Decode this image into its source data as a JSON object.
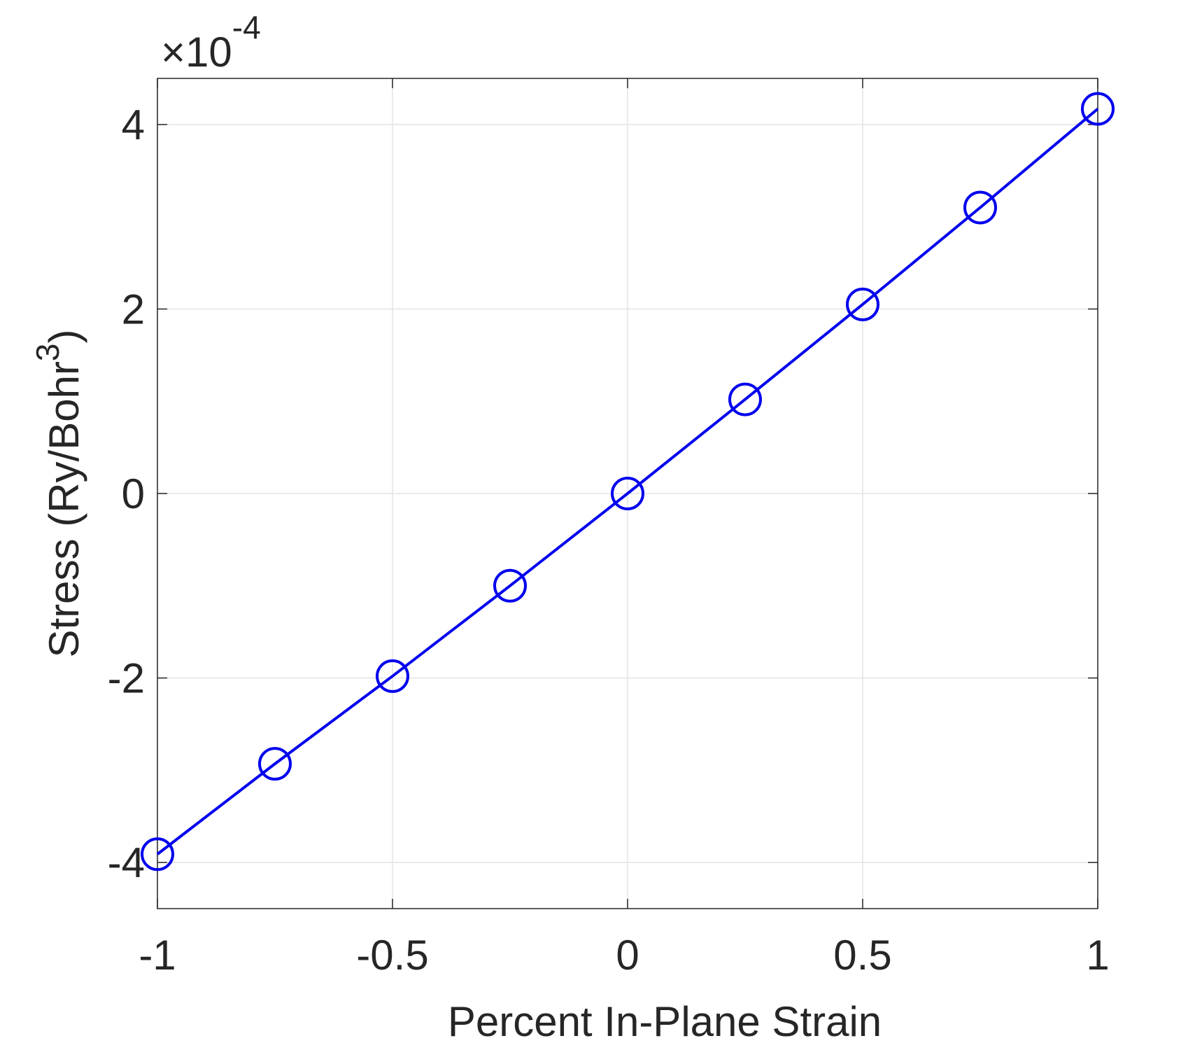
{
  "chart_data": {
    "type": "line",
    "xlabel": "Percent In-Plane Strain",
    "ylabel_parts": [
      "Stress (Ry/Bohr",
      "3",
      ")"
    ],
    "y_scale_base": "×10",
    "y_scale_exponent": "-4",
    "x": [
      -1,
      -0.75,
      -0.5,
      -0.25,
      0,
      0.25,
      0.5,
      0.75,
      1
    ],
    "series": [
      {
        "color": "#0000ee",
        "marker": "circle",
        "values": [
          -3.91,
          -2.93,
          -1.98,
          -1.0,
          0,
          1.02,
          2.05,
          3.1,
          4.17
        ]
      }
    ],
    "xlim": [
      -1,
      1
    ],
    "xticks": [
      -1,
      -0.5,
      0,
      0.5,
      1
    ],
    "ylim": [
      -4.5,
      4.5
    ],
    "yticks": [
      -4,
      -2,
      0,
      2,
      4
    ],
    "grid": true
  }
}
